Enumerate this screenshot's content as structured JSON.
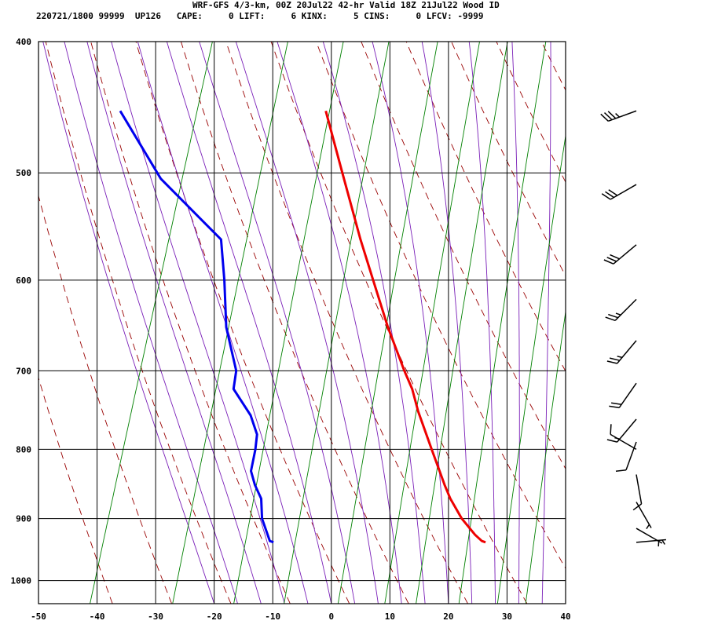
{
  "header": {
    "line1": "WRF-GFS 4/3-km, 00Z 20Jul22 42-hr Valid 18Z 21Jul22 Wood ID",
    "line2": "220721/1800 99999  UP126   CAPE:     0 LIFT:     6 KINX:     5 CINS:     0 LFCV: -9999"
  },
  "chart_data": {
    "type": "line",
    "title": "WRF-GFS 4/3-km, 00Z 20Jul22 42-hr Valid 18Z 21Jul22 Wood ID",
    "subtitle": "220721/1800 99999  UP126   CAPE:     0 LIFT:     6 KINX:     5 CINS:     0 LFCV: -9999",
    "xlabel": "",
    "ylabel": "",
    "x_range": [
      -50,
      40
    ],
    "p_range": [
      1040,
      400
    ],
    "y_scale": "log-pressure",
    "skew": "skew-T",
    "grid": true,
    "x_ticks": [
      -50,
      -40,
      -30,
      -20,
      -10,
      0,
      10,
      20,
      30,
      40
    ],
    "p_ticks": [
      400,
      500,
      600,
      700,
      800,
      900,
      1000
    ],
    "series": [
      {
        "color": "#ee0000",
        "points": [
          {
            "p": 937,
            "t": 23.1
          },
          {
            "p": 935,
            "t": 22.4
          },
          {
            "p": 925,
            "t": 20.9
          },
          {
            "p": 900,
            "t": 17.8
          },
          {
            "p": 870,
            "t": 14.8
          },
          {
            "p": 850,
            "t": 13.1
          },
          {
            "p": 800,
            "t": 9.0
          },
          {
            "p": 750,
            "t": 4.7
          },
          {
            "p": 722,
            "t": 2.5
          },
          {
            "p": 700,
            "t": 0.2
          },
          {
            "p": 650,
            "t": -4.9
          },
          {
            "p": 600,
            "t": -9.9
          },
          {
            "p": 560,
            "t": -14.2
          },
          {
            "p": 500,
            "t": -20.8
          },
          {
            "p": 450,
            "t": -26.9
          }
        ]
      },
      {
        "color": "#0000ee",
        "points": [
          {
            "p": 937,
            "t": -13.1
          },
          {
            "p": 935,
            "t": -13.8
          },
          {
            "p": 900,
            "t": -16.3
          },
          {
            "p": 870,
            "t": -17.5
          },
          {
            "p": 850,
            "t": -19.3
          },
          {
            "p": 830,
            "t": -20.7
          },
          {
            "p": 800,
            "t": -21.1
          },
          {
            "p": 780,
            "t": -21.6
          },
          {
            "p": 755,
            "t": -23.7
          },
          {
            "p": 722,
            "t": -28.0
          },
          {
            "p": 700,
            "t": -28.5
          },
          {
            "p": 650,
            "t": -32.5
          },
          {
            "p": 600,
            "t": -35.3
          },
          {
            "p": 560,
            "t": -38.0
          },
          {
            "p": 505,
            "t": -51.5
          },
          {
            "p": 450,
            "t": -62.0
          }
        ]
      }
    ],
    "background_lines": {
      "isotherm_color": "#000000",
      "dry_adiabat_color": "#990000",
      "moist_adiabat_color": "#7a1fb8",
      "mixing_ratio_color": "#008000"
    },
    "wind_barbs": {
      "color": "#000000",
      "levels": [
        {
          "p": 450,
          "dir": 250,
          "spd": 35
        },
        {
          "p": 510,
          "dir": 240,
          "spd": 30
        },
        {
          "p": 565,
          "dir": 230,
          "spd": 30
        },
        {
          "p": 620,
          "dir": 225,
          "spd": 25
        },
        {
          "p": 665,
          "dir": 220,
          "spd": 25
        },
        {
          "p": 715,
          "dir": 215,
          "spd": 20
        },
        {
          "p": 760,
          "dir": 220,
          "spd": 15
        },
        {
          "p": 790,
          "dir": 200,
          "spd": 10
        },
        {
          "p": 800,
          "dir": 300,
          "spd": 10
        },
        {
          "p": 835,
          "dir": 170,
          "spd": 10
        },
        {
          "p": 875,
          "dir": 150,
          "spd": 5
        },
        {
          "p": 915,
          "dir": 120,
          "spd": 5
        },
        {
          "p": 937,
          "dir": 85,
          "spd": 5
        }
      ]
    }
  }
}
